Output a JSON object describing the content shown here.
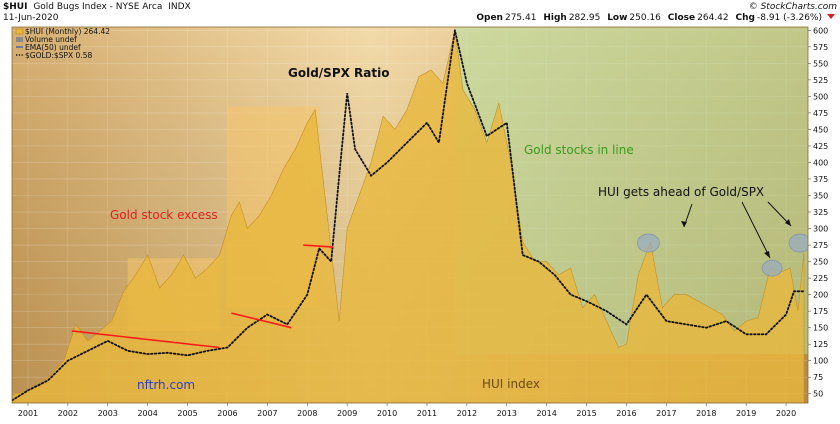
{
  "header": {
    "symbol": "$HUI",
    "name": "Gold Bugs Index - NYSE Arca",
    "exchange": "INDX",
    "date": "11-Jun-2020",
    "source": "© StockCharts.com",
    "open_label": "Open",
    "open": "275.41",
    "high_label": "High",
    "high": "282.95",
    "low_label": "Low",
    "low": "250.16",
    "close_label": "Close",
    "close": "264.42",
    "chg_label": "Chg",
    "chg": "-8.91 (-3.26%)"
  },
  "legend": [
    {
      "text": "$HUI (Monthly) 264.42",
      "style": "area"
    },
    {
      "text": "Volume undef",
      "style": "volume"
    },
    {
      "text": "EMA(50) undef",
      "style": "line"
    },
    {
      "text": "$GOLD:$SPX 0.58",
      "style": "dotted"
    }
  ],
  "colors": {
    "background": "#d9b374",
    "hui_area": "#e8b83c",
    "ratio_line": "#111111",
    "trend_line": "#ff2020",
    "box": "#f6c46a",
    "green_zone": "#b4e0a0",
    "circle": "#9aacc0"
  },
  "annotations": {
    "gold_stock_excess": "Gold stock excess",
    "gold_spx_ratio": "Gold/SPX Ratio",
    "gold_stocks_in_line": "Gold stocks in line",
    "hui_ahead": "HUI gets ahead of Gold/SPX",
    "hui_index": "HUI index",
    "watermark": "nftrh.com"
  },
  "chart_data": {
    "type": "area",
    "title": "$HUI Gold Bugs Index - NYSE Arca INDX",
    "x_range": [
      2000.6,
      2020.55
    ],
    "ylim": [
      36,
      605
    ],
    "y_ticks": [
      50,
      75,
      100,
      125,
      150,
      175,
      200,
      225,
      250,
      275,
      300,
      325,
      350,
      375,
      400,
      425,
      450,
      475,
      500,
      525,
      550,
      575,
      600
    ],
    "x_ticks": [
      2001,
      2002,
      2003,
      2004,
      2005,
      2006,
      2007,
      2008,
      2009,
      2010,
      2011,
      2012,
      2013,
      2014,
      2015,
      2016,
      2017,
      2018,
      2019,
      2020
    ],
    "x_tick_labels": [
      "2001",
      "2002",
      "2003",
      "2004",
      "2005",
      "2006",
      "2007",
      "2008",
      "2009",
      "2010",
      "2011",
      "2012",
      "2013",
      "2014",
      "2015",
      "2016",
      "2017",
      "2018",
      "2019",
      "2020"
    ],
    "series": [
      {
        "name": "$HUI (Monthly)",
        "style": "area",
        "x": [
          2000.6,
          2001.0,
          2001.3,
          2001.6,
          2001.9,
          2002.2,
          2002.5,
          2002.8,
          2003.1,
          2003.4,
          2003.7,
          2004.0,
          2004.3,
          2004.6,
          2004.9,
          2005.2,
          2005.5,
          2005.8,
          2006.1,
          2006.3,
          2006.5,
          2006.8,
          2007.1,
          2007.4,
          2007.7,
          2008.0,
          2008.2,
          2008.5,
          2008.8,
          2009.0,
          2009.3,
          2009.6,
          2009.9,
          2010.2,
          2010.5,
          2010.8,
          2011.1,
          2011.4,
          2011.7,
          2011.9,
          2012.2,
          2012.5,
          2012.8,
          2013.1,
          2013.4,
          2013.7,
          2014.0,
          2014.3,
          2014.6,
          2014.9,
          2015.2,
          2015.5,
          2015.8,
          2016.0,
          2016.3,
          2016.6,
          2016.9,
          2017.2,
          2017.5,
          2017.8,
          2018.1,
          2018.4,
          2018.7,
          2019.0,
          2019.3,
          2019.6,
          2019.9,
          2020.1,
          2020.3,
          2020.45
        ],
        "values": [
          48,
          55,
          62,
          80,
          100,
          155,
          130,
          145,
          160,
          205,
          230,
          260,
          210,
          230,
          260,
          225,
          240,
          260,
          320,
          340,
          300,
          320,
          350,
          390,
          420,
          460,
          480,
          320,
          160,
          300,
          350,
          400,
          470,
          450,
          480,
          530,
          540,
          520,
          600,
          510,
          480,
          430,
          490,
          400,
          280,
          250,
          250,
          230,
          240,
          180,
          200,
          160,
          120,
          125,
          230,
          280,
          180,
          200,
          200,
          190,
          180,
          170,
          145,
          160,
          165,
          240,
          235,
          240,
          175,
          264
        ]
      },
      {
        "name": "$GOLD:$SPX",
        "style": "dotted",
        "x": [
          2000.6,
          2001.0,
          2001.5,
          2002.0,
          2002.5,
          2003.0,
          2003.5,
          2004.0,
          2004.5,
          2005.0,
          2005.5,
          2006.0,
          2006.5,
          2007.0,
          2007.5,
          2008.0,
          2008.3,
          2008.6,
          2008.8,
          2009.0,
          2009.2,
          2009.6,
          2010.0,
          2010.5,
          2011.0,
          2011.3,
          2011.7,
          2012.0,
          2012.5,
          2013.0,
          2013.4,
          2013.8,
          2014.2,
          2014.6,
          2015.0,
          2015.5,
          2016.0,
          2016.5,
          2017.0,
          2017.5,
          2018.0,
          2018.5,
          2019.0,
          2019.5,
          2020.0,
          2020.2,
          2020.45
        ],
        "values": [
          40,
          55,
          70,
          100,
          115,
          130,
          115,
          110,
          112,
          108,
          115,
          120,
          150,
          170,
          155,
          200,
          270,
          250,
          380,
          505,
          420,
          380,
          400,
          430,
          460,
          430,
          600,
          520,
          440,
          460,
          260,
          250,
          230,
          200,
          190,
          175,
          155,
          200,
          160,
          155,
          150,
          160,
          140,
          140,
          170,
          205,
          205
        ]
      }
    ]
  }
}
